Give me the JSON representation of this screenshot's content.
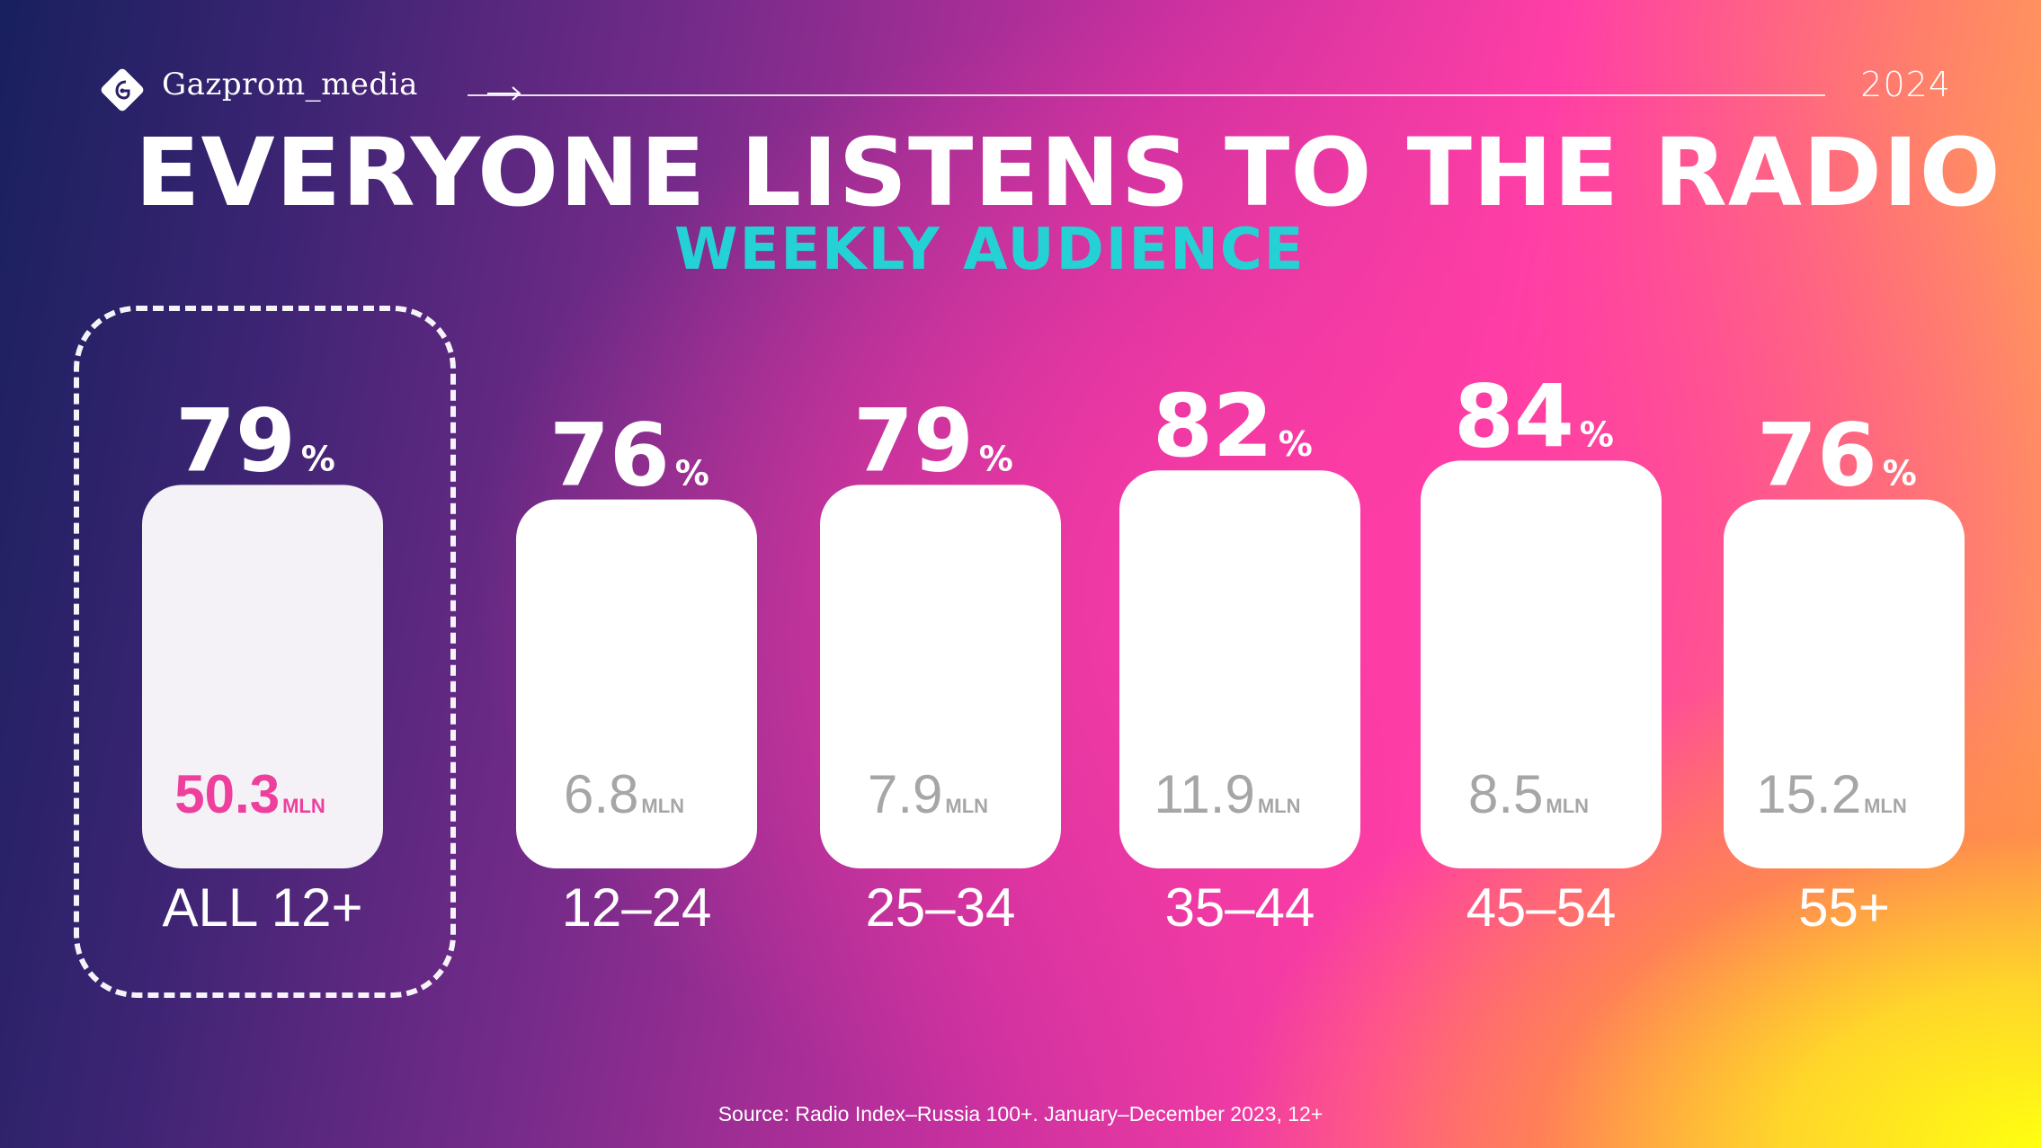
{
  "header": {
    "logo_text": "Gazprom_media",
    "year": "2024"
  },
  "title": "EVERYONE  LISTENS TO THE RADIO",
  "subtitle": "WEEKLY AUDIENCE",
  "source": "Source: Radio Index–Russia 100+. January–December 2023, 12+",
  "colors": {
    "accent_pink": "#ee3f9d",
    "accent_teal": "#24d2d6",
    "value_gray": "#a6a6a6"
  },
  "chart_data": {
    "type": "bar",
    "title": "WEEKLY AUDIENCE",
    "categories": [
      "ALL 12+",
      "12–24",
      "25–34",
      "35–44",
      "45–54",
      "55+"
    ],
    "series": [
      {
        "name": "share",
        "unit": "%",
        "values": [
          79,
          76,
          79,
          82,
          84,
          76
        ]
      },
      {
        "name": "audience",
        "unit": "MLN",
        "values": [
          "50.3",
          "6.8",
          "7.9",
          "11.9",
          "8.5",
          "15.2"
        ]
      }
    ],
    "ylim": [
      0,
      100
    ],
    "highlighted_category": "ALL 12+"
  }
}
